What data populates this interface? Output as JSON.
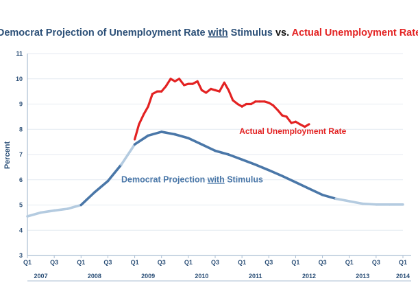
{
  "chart_data": {
    "type": "line",
    "title": {
      "part1": "Democrat Projection of Unemployment Rate ",
      "part2": "with",
      "part3": " Stimulus ",
      "part4": "vs. ",
      "part5": "Actual Unemployment Rate"
    },
    "ylabel": "Percent",
    "ylim": [
      3,
      11
    ],
    "yticks": [
      "3",
      "4",
      "5",
      "6",
      "7",
      "8",
      "9",
      "10",
      "11"
    ],
    "x_axis": {
      "range": [
        2007.0,
        2014.0
      ],
      "quarter_ticks": [
        {
          "label": "Q1",
          "x": 2007.0
        },
        {
          "label": "Q3",
          "x": 2007.5
        },
        {
          "label": "Q1",
          "x": 2008.0
        },
        {
          "label": "Q3",
          "x": 2008.5
        },
        {
          "label": "Q1",
          "x": 2009.0
        },
        {
          "label": "Q3",
          "x": 2009.5
        },
        {
          "label": "Q1",
          "x": 2010.0
        },
        {
          "label": "Q3",
          "x": 2010.5
        },
        {
          "label": "Q1",
          "x": 2011.0
        },
        {
          "label": "Q3",
          "x": 2011.5
        },
        {
          "label": "Q1",
          "x": 2012.0
        },
        {
          "label": "Q3",
          "x": 2012.5
        },
        {
          "label": "Q1",
          "x": 2013.0
        },
        {
          "label": "Q3",
          "x": 2013.5
        },
        {
          "label": "Q1",
          "x": 2014.0
        }
      ],
      "years": [
        {
          "label": "2007",
          "x": 2007.25
        },
        {
          "label": "2008",
          "x": 2008.25
        },
        {
          "label": "2009",
          "x": 2009.25
        },
        {
          "label": "2010",
          "x": 2010.25
        },
        {
          "label": "2011",
          "x": 2011.25
        },
        {
          "label": "2012",
          "x": 2012.25
        },
        {
          "label": "2013",
          "x": 2013.25
        },
        {
          "label": "2014",
          "x": 2014.0
        }
      ]
    },
    "series": [
      {
        "name": "Democrat Projection with Stimulus",
        "label_parts": {
          "before": "Democrat Projection ",
          "emph": "with",
          "after": " Stimulus"
        },
        "label_at": [
          2008.75,
          5.9
        ],
        "color": "#4a77a8",
        "light_color": "#b4cbe0",
        "points": [
          [
            2007.0,
            4.55
          ],
          [
            2007.25,
            4.7
          ],
          [
            2007.5,
            4.78
          ],
          [
            2007.75,
            4.85
          ],
          [
            2008.0,
            5.0
          ],
          [
            2008.25,
            5.5
          ],
          [
            2008.5,
            5.95
          ],
          [
            2008.75,
            6.6
          ],
          [
            2009.0,
            7.4
          ],
          [
            2009.25,
            7.75
          ],
          [
            2009.5,
            7.9
          ],
          [
            2009.75,
            7.8
          ],
          [
            2010.0,
            7.65
          ],
          [
            2010.25,
            7.4
          ],
          [
            2010.5,
            7.15
          ],
          [
            2010.75,
            7.0
          ],
          [
            2011.0,
            6.8
          ],
          [
            2011.25,
            6.6
          ],
          [
            2011.5,
            6.38
          ],
          [
            2011.75,
            6.15
          ],
          [
            2012.0,
            5.9
          ],
          [
            2012.25,
            5.65
          ],
          [
            2012.5,
            5.4
          ],
          [
            2012.75,
            5.25
          ],
          [
            2013.0,
            5.15
          ],
          [
            2013.25,
            5.05
          ],
          [
            2013.5,
            5.02
          ],
          [
            2013.75,
            5.02
          ],
          [
            2014.0,
            5.02
          ]
        ]
      },
      {
        "name": "Actual Unemployment Rate",
        "label_parts": {
          "before": "Actual Unemployment Rate",
          "emph": "",
          "after": ""
        },
        "label_at": [
          2010.95,
          7.82
        ],
        "color": "#e32222",
        "light_color": "#e32222",
        "points": [
          [
            2009.0,
            7.6
          ],
          [
            2009.08,
            8.2
          ],
          [
            2009.17,
            8.6
          ],
          [
            2009.25,
            8.9
          ],
          [
            2009.33,
            9.4
          ],
          [
            2009.42,
            9.5
          ],
          [
            2009.5,
            9.5
          ],
          [
            2009.58,
            9.7
          ],
          [
            2009.67,
            10.0
          ],
          [
            2009.75,
            9.9
          ],
          [
            2009.83,
            10.0
          ],
          [
            2009.92,
            9.75
          ],
          [
            2010.0,
            9.8
          ],
          [
            2010.08,
            9.8
          ],
          [
            2010.17,
            9.9
          ],
          [
            2010.25,
            9.55
          ],
          [
            2010.33,
            9.45
          ],
          [
            2010.42,
            9.6
          ],
          [
            2010.5,
            9.55
          ],
          [
            2010.58,
            9.5
          ],
          [
            2010.67,
            9.85
          ],
          [
            2010.75,
            9.55
          ],
          [
            2010.83,
            9.15
          ],
          [
            2010.92,
            9.0
          ],
          [
            2011.0,
            8.9
          ],
          [
            2011.08,
            9.0
          ],
          [
            2011.17,
            9.0
          ],
          [
            2011.25,
            9.1
          ],
          [
            2011.33,
            9.1
          ],
          [
            2011.42,
            9.1
          ],
          [
            2011.5,
            9.05
          ],
          [
            2011.58,
            8.95
          ],
          [
            2011.67,
            8.75
          ],
          [
            2011.75,
            8.55
          ],
          [
            2011.83,
            8.5
          ],
          [
            2011.92,
            8.25
          ],
          [
            2012.0,
            8.3
          ],
          [
            2012.08,
            8.2
          ],
          [
            2012.17,
            8.1
          ],
          [
            2012.25,
            8.2
          ]
        ]
      }
    ]
  }
}
